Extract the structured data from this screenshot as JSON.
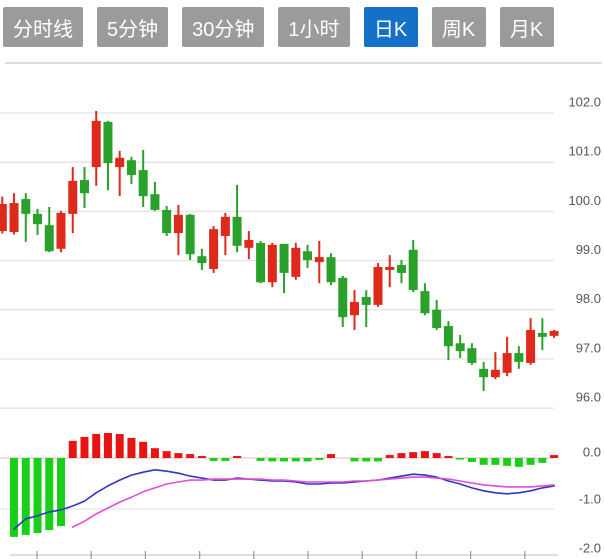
{
  "toolbar": {
    "tabs": [
      {
        "id": "timeline",
        "label": "分时线",
        "active": false
      },
      {
        "id": "5min",
        "label": "5分钟",
        "active": false
      },
      {
        "id": "30min",
        "label": "30分钟",
        "active": false
      },
      {
        "id": "1hour",
        "label": "1小时",
        "active": false
      },
      {
        "id": "daily",
        "label": "日K",
        "active": true
      },
      {
        "id": "weekly",
        "label": "周K",
        "active": false
      },
      {
        "id": "monthly",
        "label": "月K",
        "active": false
      }
    ]
  },
  "colors": {
    "up": "#dd2a1b",
    "down": "#2aa12a",
    "macd_up": "#e81414",
    "macd_down": "#19cf19",
    "dif": "#3038c0",
    "dea": "#df4fd3",
    "grid": "#e3e3e3",
    "axis_line": "#c9c9c9",
    "tick": "#a0a0a0",
    "label": "#575757",
    "zero_line": "#eeb3b3",
    "tab_bg": "#9b9b9b",
    "tab_active_bg": "#1571c8",
    "tab_text": "#ffffff",
    "background": "#ffffff"
  },
  "chart_data": {
    "type": "candlestick",
    "title": "",
    "panels": [
      "price",
      "macd"
    ],
    "price_axis": {
      "ticks": [
        "102.0",
        "101.0",
        "100.0",
        "99.0",
        "98.0",
        "97.0",
        "96.0"
      ],
      "min": 96,
      "max": 102,
      "grid": true,
      "position": "right"
    },
    "macd_axis": {
      "ticks": [
        "0.0",
        "-1.0",
        "-2.0"
      ],
      "position": "right"
    },
    "candles": [
      [
        99.6,
        100.3,
        99.55,
        100.15
      ],
      [
        99.58,
        100.37,
        99.53,
        100.17
      ],
      [
        100.25,
        100.37,
        99.38,
        99.95
      ],
      [
        99.95,
        100.05,
        99.52,
        99.74
      ],
      [
        99.72,
        100.09,
        99.17,
        99.19
      ],
      [
        99.24,
        100.01,
        99.17,
        99.97
      ],
      [
        99.95,
        100.9,
        99.56,
        100.62
      ],
      [
        100.64,
        100.9,
        100.07,
        100.37
      ],
      [
        100.9,
        102.04,
        100.52,
        101.84
      ],
      [
        101.82,
        101.84,
        100.43,
        100.98
      ],
      [
        100.9,
        101.23,
        100.31,
        101.09
      ],
      [
        101.04,
        101.11,
        100.56,
        100.74
      ],
      [
        100.84,
        101.25,
        100.09,
        100.31
      ],
      [
        100.35,
        100.6,
        100.01,
        100.03
      ],
      [
        100.03,
        100.11,
        99.5,
        99.56
      ],
      [
        99.56,
        100.13,
        99.11,
        99.93
      ],
      [
        99.93,
        99.95,
        99.01,
        99.13
      ],
      [
        99.09,
        99.24,
        98.81,
        98.95
      ],
      [
        98.83,
        99.7,
        98.75,
        99.64
      ],
      [
        99.5,
        99.97,
        99.11,
        99.89
      ],
      [
        99.89,
        100.54,
        99.17,
        99.3
      ],
      [
        99.26,
        99.6,
        99.03,
        99.42
      ],
      [
        99.36,
        99.4,
        98.54,
        98.56
      ],
      [
        98.56,
        99.36,
        98.46,
        99.32
      ],
      [
        99.34,
        99.34,
        98.34,
        98.75
      ],
      [
        98.67,
        99.36,
        98.61,
        99.26
      ],
      [
        99.19,
        99.32,
        98.85,
        99.01
      ],
      [
        98.97,
        99.4,
        98.54,
        99.07
      ],
      [
        99.07,
        99.15,
        98.5,
        98.56
      ],
      [
        98.65,
        98.69,
        97.65,
        97.85
      ],
      [
        97.89,
        98.4,
        97.59,
        98.16
      ],
      [
        98.26,
        98.4,
        97.65,
        98.1
      ],
      [
        98.1,
        98.95,
        98.06,
        98.87
      ],
      [
        98.81,
        99.11,
        98.46,
        98.87
      ],
      [
        98.91,
        99.01,
        98.54,
        98.75
      ],
      [
        99.22,
        99.42,
        98.36,
        98.4
      ],
      [
        98.38,
        98.54,
        97.89,
        97.93
      ],
      [
        98.0,
        98.2,
        97.59,
        97.63
      ],
      [
        97.67,
        97.77,
        96.98,
        97.26
      ],
      [
        97.32,
        97.49,
        97.02,
        97.16
      ],
      [
        97.22,
        97.32,
        96.88,
        96.92
      ],
      [
        96.8,
        96.94,
        96.35,
        96.63
      ],
      [
        96.63,
        97.14,
        96.59,
        96.78
      ],
      [
        96.72,
        97.45,
        96.65,
        97.12
      ],
      [
        97.12,
        97.26,
        96.8,
        96.94
      ],
      [
        96.92,
        97.83,
        96.88,
        97.59
      ],
      [
        97.53,
        97.83,
        97.18,
        97.45
      ],
      [
        97.47,
        97.59,
        97.43,
        97.57
      ]
    ],
    "macd": {
      "histogram": [
        0,
        -1.61,
        -1.57,
        -1.53,
        -1.47,
        -1.39,
        0.35,
        0.43,
        0.49,
        0.51,
        0.49,
        0.41,
        0.33,
        0.2,
        0.14,
        0.1,
        0.08,
        0.04,
        -0.06,
        -0.06,
        0.04,
        0,
        -0.06,
        -0.07,
        -0.07,
        -0.07,
        -0.07,
        -0.04,
        0.08,
        0,
        -0.07,
        -0.07,
        -0.07,
        0.06,
        0.1,
        0.12,
        0.14,
        0.1,
        0.04,
        -0.03,
        -0.08,
        -0.14,
        -0.14,
        -0.16,
        -0.18,
        -0.14,
        -0.1,
        0.06
      ],
      "dif": [
        null,
        -1.45,
        -1.24,
        -1.18,
        -1.1,
        -1.06,
        -0.98,
        -0.88,
        -0.71,
        -0.57,
        -0.45,
        -0.35,
        -0.29,
        -0.24,
        -0.27,
        -0.31,
        -0.37,
        -0.41,
        -0.45,
        -0.45,
        -0.41,
        -0.43,
        -0.45,
        -0.47,
        -0.47,
        -0.49,
        -0.53,
        -0.53,
        -0.51,
        -0.51,
        -0.49,
        -0.47,
        -0.45,
        -0.41,
        -0.37,
        -0.33,
        -0.35,
        -0.39,
        -0.47,
        -0.53,
        -0.61,
        -0.67,
        -0.71,
        -0.73,
        -0.71,
        -0.67,
        -0.61,
        -0.57
      ],
      "dea": [
        null,
        null,
        null,
        null,
        null,
        null,
        -1.41,
        -1.29,
        -1.14,
        -1.02,
        -0.9,
        -0.8,
        -0.69,
        -0.61,
        -0.53,
        -0.49,
        -0.45,
        -0.45,
        -0.43,
        -0.43,
        -0.43,
        -0.43,
        -0.43,
        -0.45,
        -0.45,
        -0.47,
        -0.49,
        -0.49,
        -0.49,
        -0.49,
        -0.47,
        -0.47,
        -0.45,
        -0.43,
        -0.41,
        -0.39,
        -0.39,
        -0.41,
        -0.43,
        -0.47,
        -0.51,
        -0.55,
        -0.57,
        -0.59,
        -0.59,
        -0.59,
        -0.57,
        -0.55
      ]
    }
  }
}
